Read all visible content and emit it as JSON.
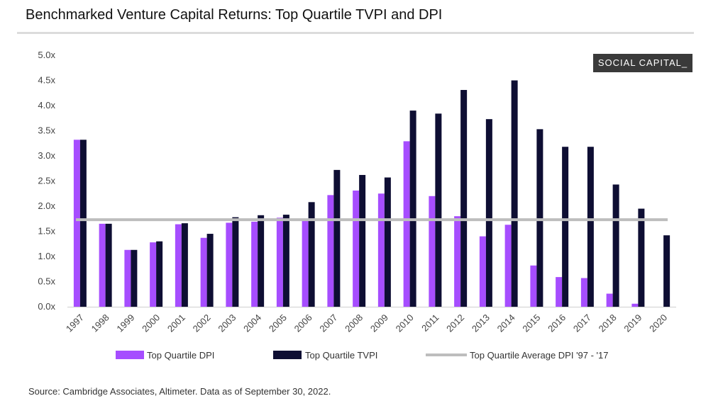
{
  "header": {
    "title": "Benchmarked Venture Capital Returns: Top Quartile TVPI and DPI",
    "brand": "SOCIAL CAPITAL_"
  },
  "footer": {
    "source": "Source: Cambridge Associates, Altimeter. Data as of September 30, 2022."
  },
  "colors": {
    "dpi": "#a64dff",
    "tvpi": "#0e0e33",
    "avg": "#bdbdbd"
  },
  "chart_data": {
    "type": "bar",
    "title": "Benchmarked Venture Capital Returns: Top Quartile TVPI and DPI",
    "xlabel": "",
    "ylabel": "",
    "ylim": [
      0,
      5
    ],
    "yticks": [
      "0.0x",
      "0.5x",
      "1.0x",
      "1.5x",
      "2.0x",
      "2.5x",
      "3.0x",
      "3.5x",
      "4.0x",
      "4.5x",
      "5.0x"
    ],
    "grid": false,
    "categories": [
      "1997",
      "1998",
      "1999",
      "2000",
      "2001",
      "2002",
      "2003",
      "2004",
      "2005",
      "2006",
      "2007",
      "2008",
      "2009",
      "2010",
      "2011",
      "2012",
      "2013",
      "2014",
      "2015",
      "2016",
      "2017",
      "2018",
      "2019",
      "2020"
    ],
    "series": [
      {
        "name": "Top Quartile DPI",
        "values": [
          3.32,
          1.65,
          1.13,
          1.28,
          1.64,
          1.37,
          1.67,
          1.69,
          1.77,
          1.72,
          2.22,
          2.31,
          2.25,
          3.29,
          2.2,
          1.8,
          1.4,
          1.63,
          0.82,
          0.59,
          0.57,
          0.26,
          0.06,
          0.0
        ]
      },
      {
        "name": "Top Quartile TVPI",
        "values": [
          3.32,
          1.65,
          1.13,
          1.3,
          1.66,
          1.45,
          1.78,
          1.82,
          1.83,
          2.08,
          2.72,
          2.62,
          2.57,
          3.9,
          3.84,
          4.31,
          3.73,
          4.5,
          3.53,
          3.18,
          3.18,
          2.43,
          1.95,
          1.42
        ]
      },
      {
        "name": "Top Quartile Average DPI '97 - '17",
        "type": "line",
        "value": 1.73
      }
    ],
    "legend": [
      "Top Quartile DPI",
      "Top Quartile TVPI",
      "Top Quartile Average DPI '97 - '17"
    ],
    "legend_position": "bottom"
  }
}
